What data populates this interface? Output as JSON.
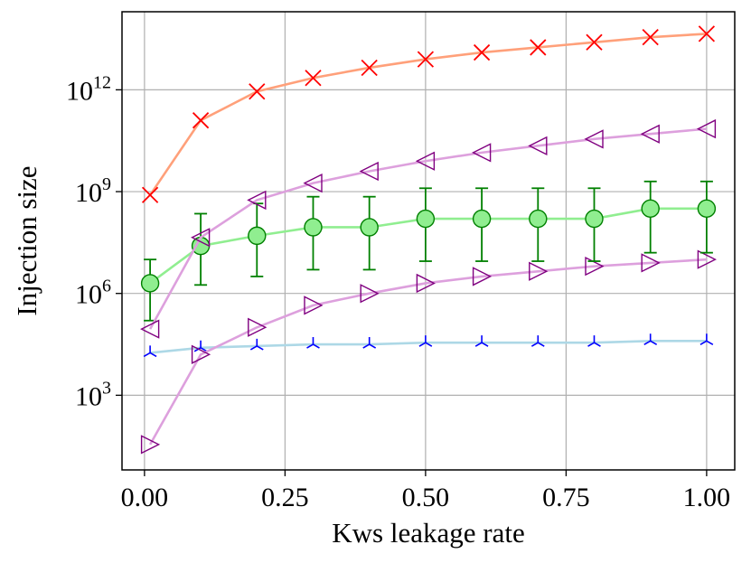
{
  "chart_data": {
    "type": "line",
    "title": "",
    "xlabel": "Kws leakage rate",
    "ylabel": "Injection size",
    "yscale": "log",
    "xlim": [
      -0.04,
      1.05
    ],
    "ylim_log10": [
      0.8,
      14.3
    ],
    "grid": true,
    "legend": "none",
    "x_ticks": [
      0.0,
      0.25,
      0.5,
      0.75,
      1.0
    ],
    "x_tick_labels": [
      "0.00",
      "0.25",
      "0.50",
      "0.75",
      "1.00"
    ],
    "y_ticks_log10": [
      3,
      6,
      9,
      12
    ],
    "y_tick_labels": [
      {
        "base": "10",
        "exp": "3"
      },
      {
        "base": "10",
        "exp": "6"
      },
      {
        "base": "10",
        "exp": "9"
      },
      {
        "base": "10",
        "exp": "12"
      }
    ],
    "x": [
      0.01,
      0.1,
      0.2,
      0.3,
      0.4,
      0.5,
      0.6,
      0.7,
      0.8,
      0.9,
      1.0
    ],
    "series": [
      {
        "name": "series-x-markers",
        "marker": "x",
        "line_color": "#ffa07a",
        "marker_color": "#ff0000",
        "log10_values": [
          8.9,
          11.1,
          11.95,
          12.35,
          12.65,
          12.9,
          13.1,
          13.25,
          13.4,
          13.55,
          13.65
        ]
      },
      {
        "name": "series-left-triangles",
        "marker": "triangle-left",
        "line_color": "#dda0dd",
        "marker_color": "#800080",
        "log10_values": [
          4.95,
          7.65,
          8.75,
          9.25,
          9.6,
          9.9,
          10.15,
          10.35,
          10.55,
          10.7,
          10.85
        ]
      },
      {
        "name": "series-circles-with-errorbars",
        "marker": "circle",
        "line_color": "#90ee90",
        "marker_color": "#008000",
        "fill_color": "#90ee90",
        "log10_values": [
          6.3,
          7.4,
          7.7,
          7.95,
          7.95,
          8.2,
          8.2,
          8.2,
          8.2,
          8.5,
          8.5
        ],
        "error_low_log10": [
          5.2,
          6.25,
          6.5,
          6.7,
          6.7,
          6.95,
          6.95,
          6.95,
          6.95,
          7.2,
          7.2
        ],
        "error_high_log10": [
          7.0,
          8.35,
          8.65,
          8.85,
          8.85,
          9.1,
          9.1,
          9.1,
          9.1,
          9.3,
          9.3
        ]
      },
      {
        "name": "series-right-triangles",
        "marker": "triangle-right",
        "line_color": "#dda0dd",
        "marker_color": "#800080",
        "log10_values": [
          1.55,
          4.2,
          5.0,
          5.65,
          6.0,
          6.3,
          6.5,
          6.65,
          6.8,
          6.9,
          7.0
        ]
      },
      {
        "name": "series-tri-markers",
        "marker": "tri-down",
        "line_color": "#add8e6",
        "marker_color": "#0000ff",
        "log10_values": [
          4.25,
          4.4,
          4.45,
          4.5,
          4.5,
          4.55,
          4.55,
          4.55,
          4.55,
          4.6,
          4.6
        ]
      }
    ]
  }
}
